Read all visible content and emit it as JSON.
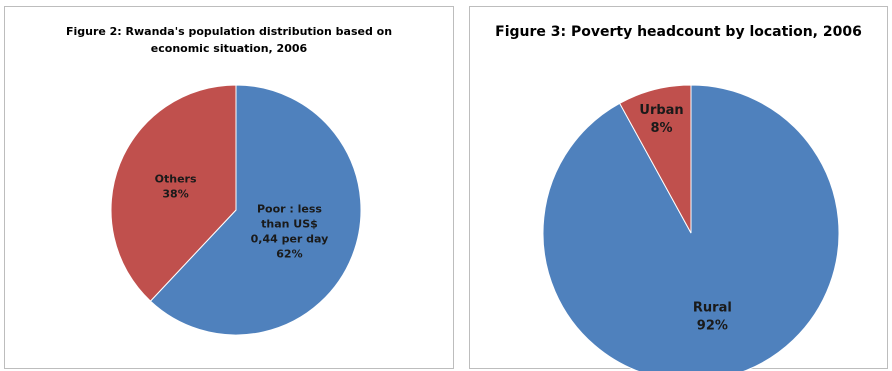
{
  "chart_data": [
    {
      "type": "pie",
      "title": "Figure 2: Rwanda's population distribution based on economic situation, 2006",
      "categories": [
        "Poor : less than US$ 0,44 per day",
        "Others"
      ],
      "values": [
        62,
        38
      ],
      "labels": [
        {
          "lines": [
            "Poor : less",
            "than US$",
            "0,44 per day",
            "62%"
          ]
        },
        {
          "lines": [
            "Others",
            "38%"
          ]
        }
      ],
      "colors": [
        "#4f81bd",
        "#c0504d"
      ]
    },
    {
      "type": "pie",
      "title": "Figure 3: Poverty headcount by location, 2006",
      "categories": [
        "Rural",
        "Urban"
      ],
      "values": [
        92,
        8
      ],
      "labels": [
        {
          "lines": [
            "Rural",
            "92%"
          ]
        },
        {
          "lines": [
            "Urban",
            "8%"
          ]
        }
      ],
      "colors": [
        "#4f81bd",
        "#c0504d"
      ]
    }
  ]
}
